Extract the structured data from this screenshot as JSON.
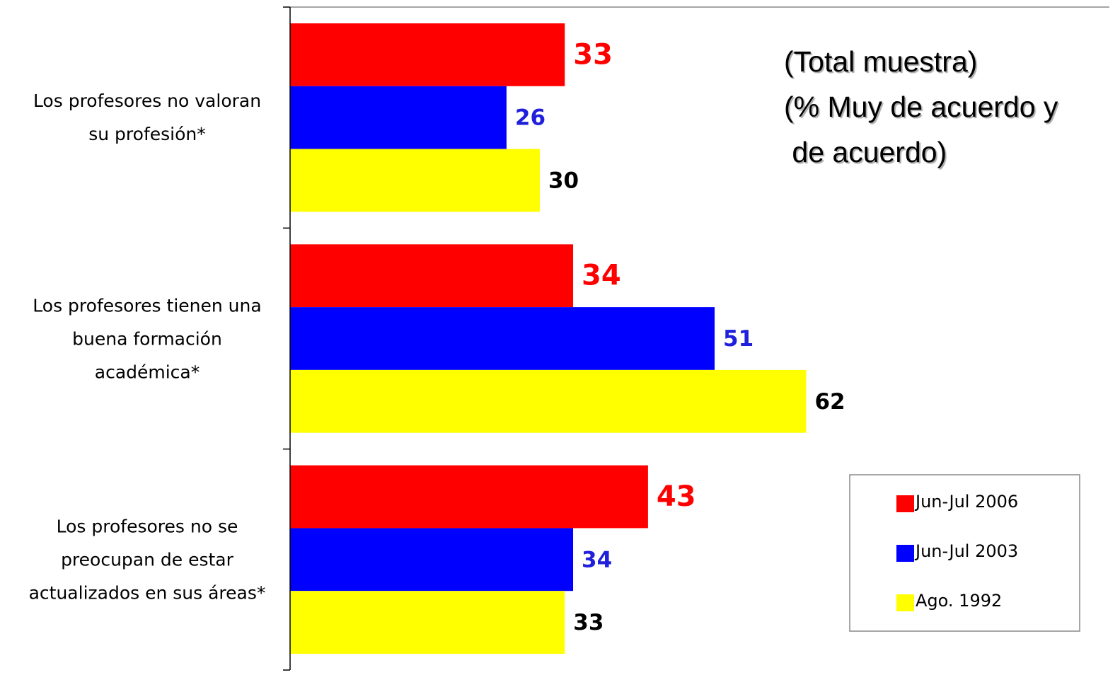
{
  "chart_data": {
    "type": "bar",
    "orientation": "horizontal",
    "annotation": [
      "(Total muestra)",
      "(% Muy de acuerdo y",
      " de acuerdo)"
    ],
    "categories": [
      "Los profesores no valoran\nsu profesión*",
      "Los profesores tienen una\nbuena formación\nacadémica*",
      "Los profesores no se\npreocupan de estar\nactualizados en sus áreas*"
    ],
    "series": [
      {
        "name": "Jun-Jul 2006",
        "color": "#ff0000",
        "label_color": "#ff0000",
        "values": [
          33,
          34,
          43
        ]
      },
      {
        "name": "Jun-Jul 2003",
        "color": "#0000ff",
        "label_color": "#1f1fdc",
        "values": [
          26,
          51,
          34
        ]
      },
      {
        "name": "Ago. 1992",
        "color": "#ffff00",
        "label_color": "#000000",
        "values": [
          30,
          62,
          33
        ]
      }
    ],
    "xlim": [
      0,
      98
    ],
    "legend": "lower right"
  }
}
